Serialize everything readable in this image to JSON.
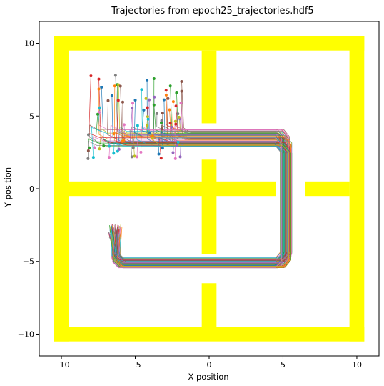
{
  "chart_data": {
    "type": "line",
    "title": "Trajectories from epoch25_trajectories.hdf5",
    "xlabel": "X position",
    "ylabel": "Y position",
    "xlim": [
      -11.5,
      11.5
    ],
    "ylim": [
      -11.5,
      11.5
    ],
    "xticks": [
      -10,
      -5,
      0,
      5,
      10
    ],
    "yticks": [
      -10,
      -5,
      0,
      5,
      10
    ],
    "grid": false,
    "legend": "none",
    "wall_color": "#ffff00",
    "walls": [
      {
        "x": [
          -10.5,
          10.5
        ],
        "y": [
          9.5,
          10.5
        ]
      },
      {
        "x": [
          -10.5,
          10.5
        ],
        "y": [
          -10.5,
          -9.5
        ]
      },
      {
        "x": [
          -10.5,
          -9.5
        ],
        "y": [
          -10.5,
          10.5
        ]
      },
      {
        "x": [
          9.5,
          10.5
        ],
        "y": [
          -10.5,
          10.5
        ]
      },
      {
        "x": [
          -9.5,
          4.5
        ],
        "y": [
          -0.5,
          0.5
        ]
      },
      {
        "x": [
          6.5,
          9.5
        ],
        "y": [
          -0.5,
          0.5
        ]
      },
      {
        "x": [
          -0.5,
          0.5
        ],
        "y": [
          4.5,
          9.5
        ]
      },
      {
        "x": [
          -0.5,
          0.5
        ],
        "y": [
          -4.5,
          2.0
        ]
      },
      {
        "x": [
          -0.5,
          0.5
        ],
        "y": [
          -9.5,
          -6.5
        ]
      }
    ],
    "path_corridor": [
      [
        -6.0,
        3.5
      ],
      [
        5.2,
        3.5
      ],
      [
        5.2,
        -5.1
      ],
      [
        -6.3,
        -5.1
      ],
      [
        -6.5,
        -2.9
      ]
    ],
    "start_region": {
      "x": [
        -8.2,
        -1.8
      ],
      "y": [
        2.0,
        8.0
      ]
    },
    "goal_region": {
      "x": [
        -6.8,
        -5.9
      ],
      "y": [
        -3.3,
        -2.4
      ]
    },
    "trajectory_count": 90,
    "series_colors": [
      "#1f77b4",
      "#ff7f0e",
      "#2ca02c",
      "#d62728",
      "#9467bd",
      "#8c564b",
      "#e377c2",
      "#7f7f7f",
      "#bcbd22",
      "#17becf"
    ]
  }
}
